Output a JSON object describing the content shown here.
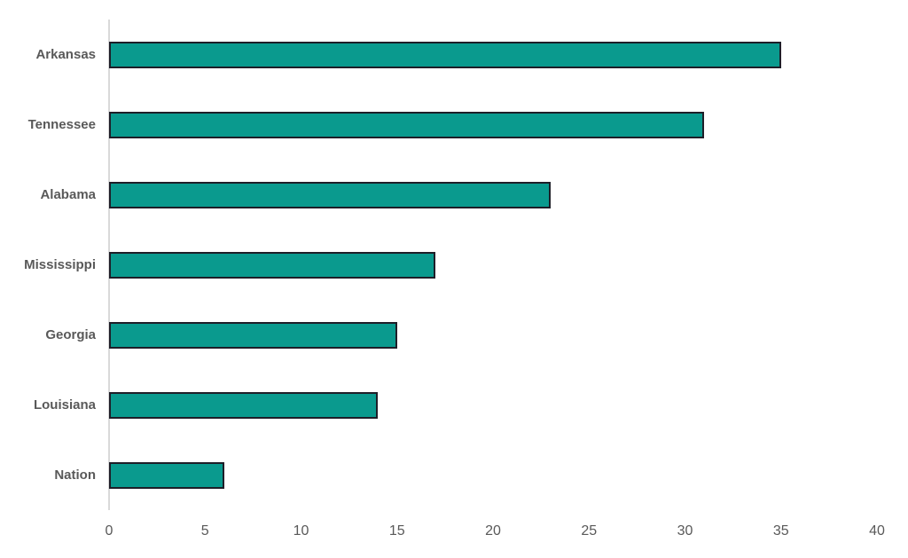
{
  "chart_data": {
    "type": "bar",
    "orientation": "horizontal",
    "title": "",
    "xlabel": "",
    "ylabel": "",
    "categories": [
      "Arkansas",
      "Tennessee",
      "Alabama",
      "Mississippi",
      "Georgia",
      "Louisiana",
      "Nation"
    ],
    "values": [
      35,
      31,
      23,
      17,
      15,
      14,
      6
    ],
    "xlim": [
      0,
      40
    ],
    "xticks": [
      0,
      5,
      10,
      15,
      20,
      25,
      30,
      35,
      40
    ],
    "grid": false,
    "legend": false,
    "colors": {
      "bar_fill": "#0A9A8E",
      "bar_border": "#1E1E28",
      "category_label": "#595959",
      "tick_label": "#595959",
      "axis_line": "#D9D9D9"
    }
  }
}
